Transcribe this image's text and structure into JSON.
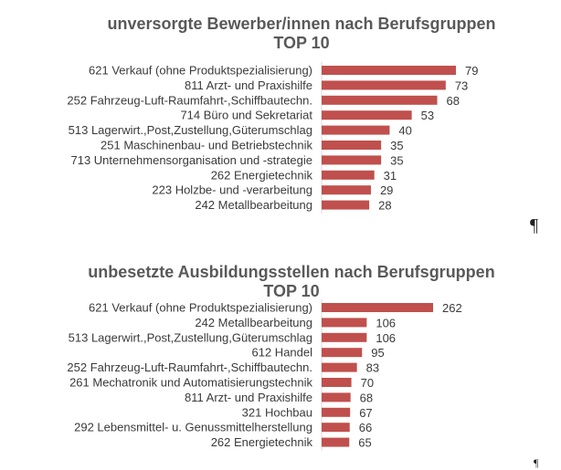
{
  "chart_data": [
    {
      "type": "bar",
      "orientation": "horizontal",
      "title": "unversorgte Bewerber/innen nach Berufsgruppen",
      "subtitle": "TOP 10",
      "bar_color": "#c0504d",
      "categories": [
        "621 Verkauf (ohne Produktspezialisierung)",
        "811 Arzt- und Praxishilfe",
        "252 Fahrzeug-Luft-Raumfahrt-,Schiffbautechn.",
        "714 Büro und Sekretariat",
        "513 Lagerwirt.,Post,Zustellung,Güterumschlag",
        "251 Maschinenbau- und Betriebstechnik",
        "713 Unternehmensorganisation und -strategie",
        "262 Energietechnik",
        "223 Holzbe- und -verarbeitung",
        "242 Metallbearbeitung"
      ],
      "values": [
        79,
        73,
        68,
        53,
        40,
        35,
        35,
        31,
        29,
        28
      ]
    },
    {
      "type": "bar",
      "orientation": "horizontal",
      "title": "unbesetzte Ausbildungsstellen nach Berufsgruppen",
      "subtitle": "TOP 10",
      "bar_color": "#c0504d",
      "categories": [
        "621 Verkauf (ohne Produktspezialisierung)",
        "242 Metallbearbeitung",
        "513 Lagerwirt.,Post,Zustellung,Güterumschlag",
        "612 Handel",
        "252 Fahrzeug-Luft-Raumfahrt-,Schiffbautechn.",
        "261 Mechatronik und Automatisierungstechnik",
        "811 Arzt- und Praxishilfe",
        "321 Hochbau",
        "292 Lebensmittel- u. Genussmittelherstellung",
        "262 Energietechnik"
      ],
      "values": [
        262,
        106,
        106,
        95,
        83,
        70,
        68,
        67,
        66,
        65
      ]
    }
  ],
  "marks": {
    "pilcrow_1": "¶",
    "pilcrow_2": "¶"
  }
}
